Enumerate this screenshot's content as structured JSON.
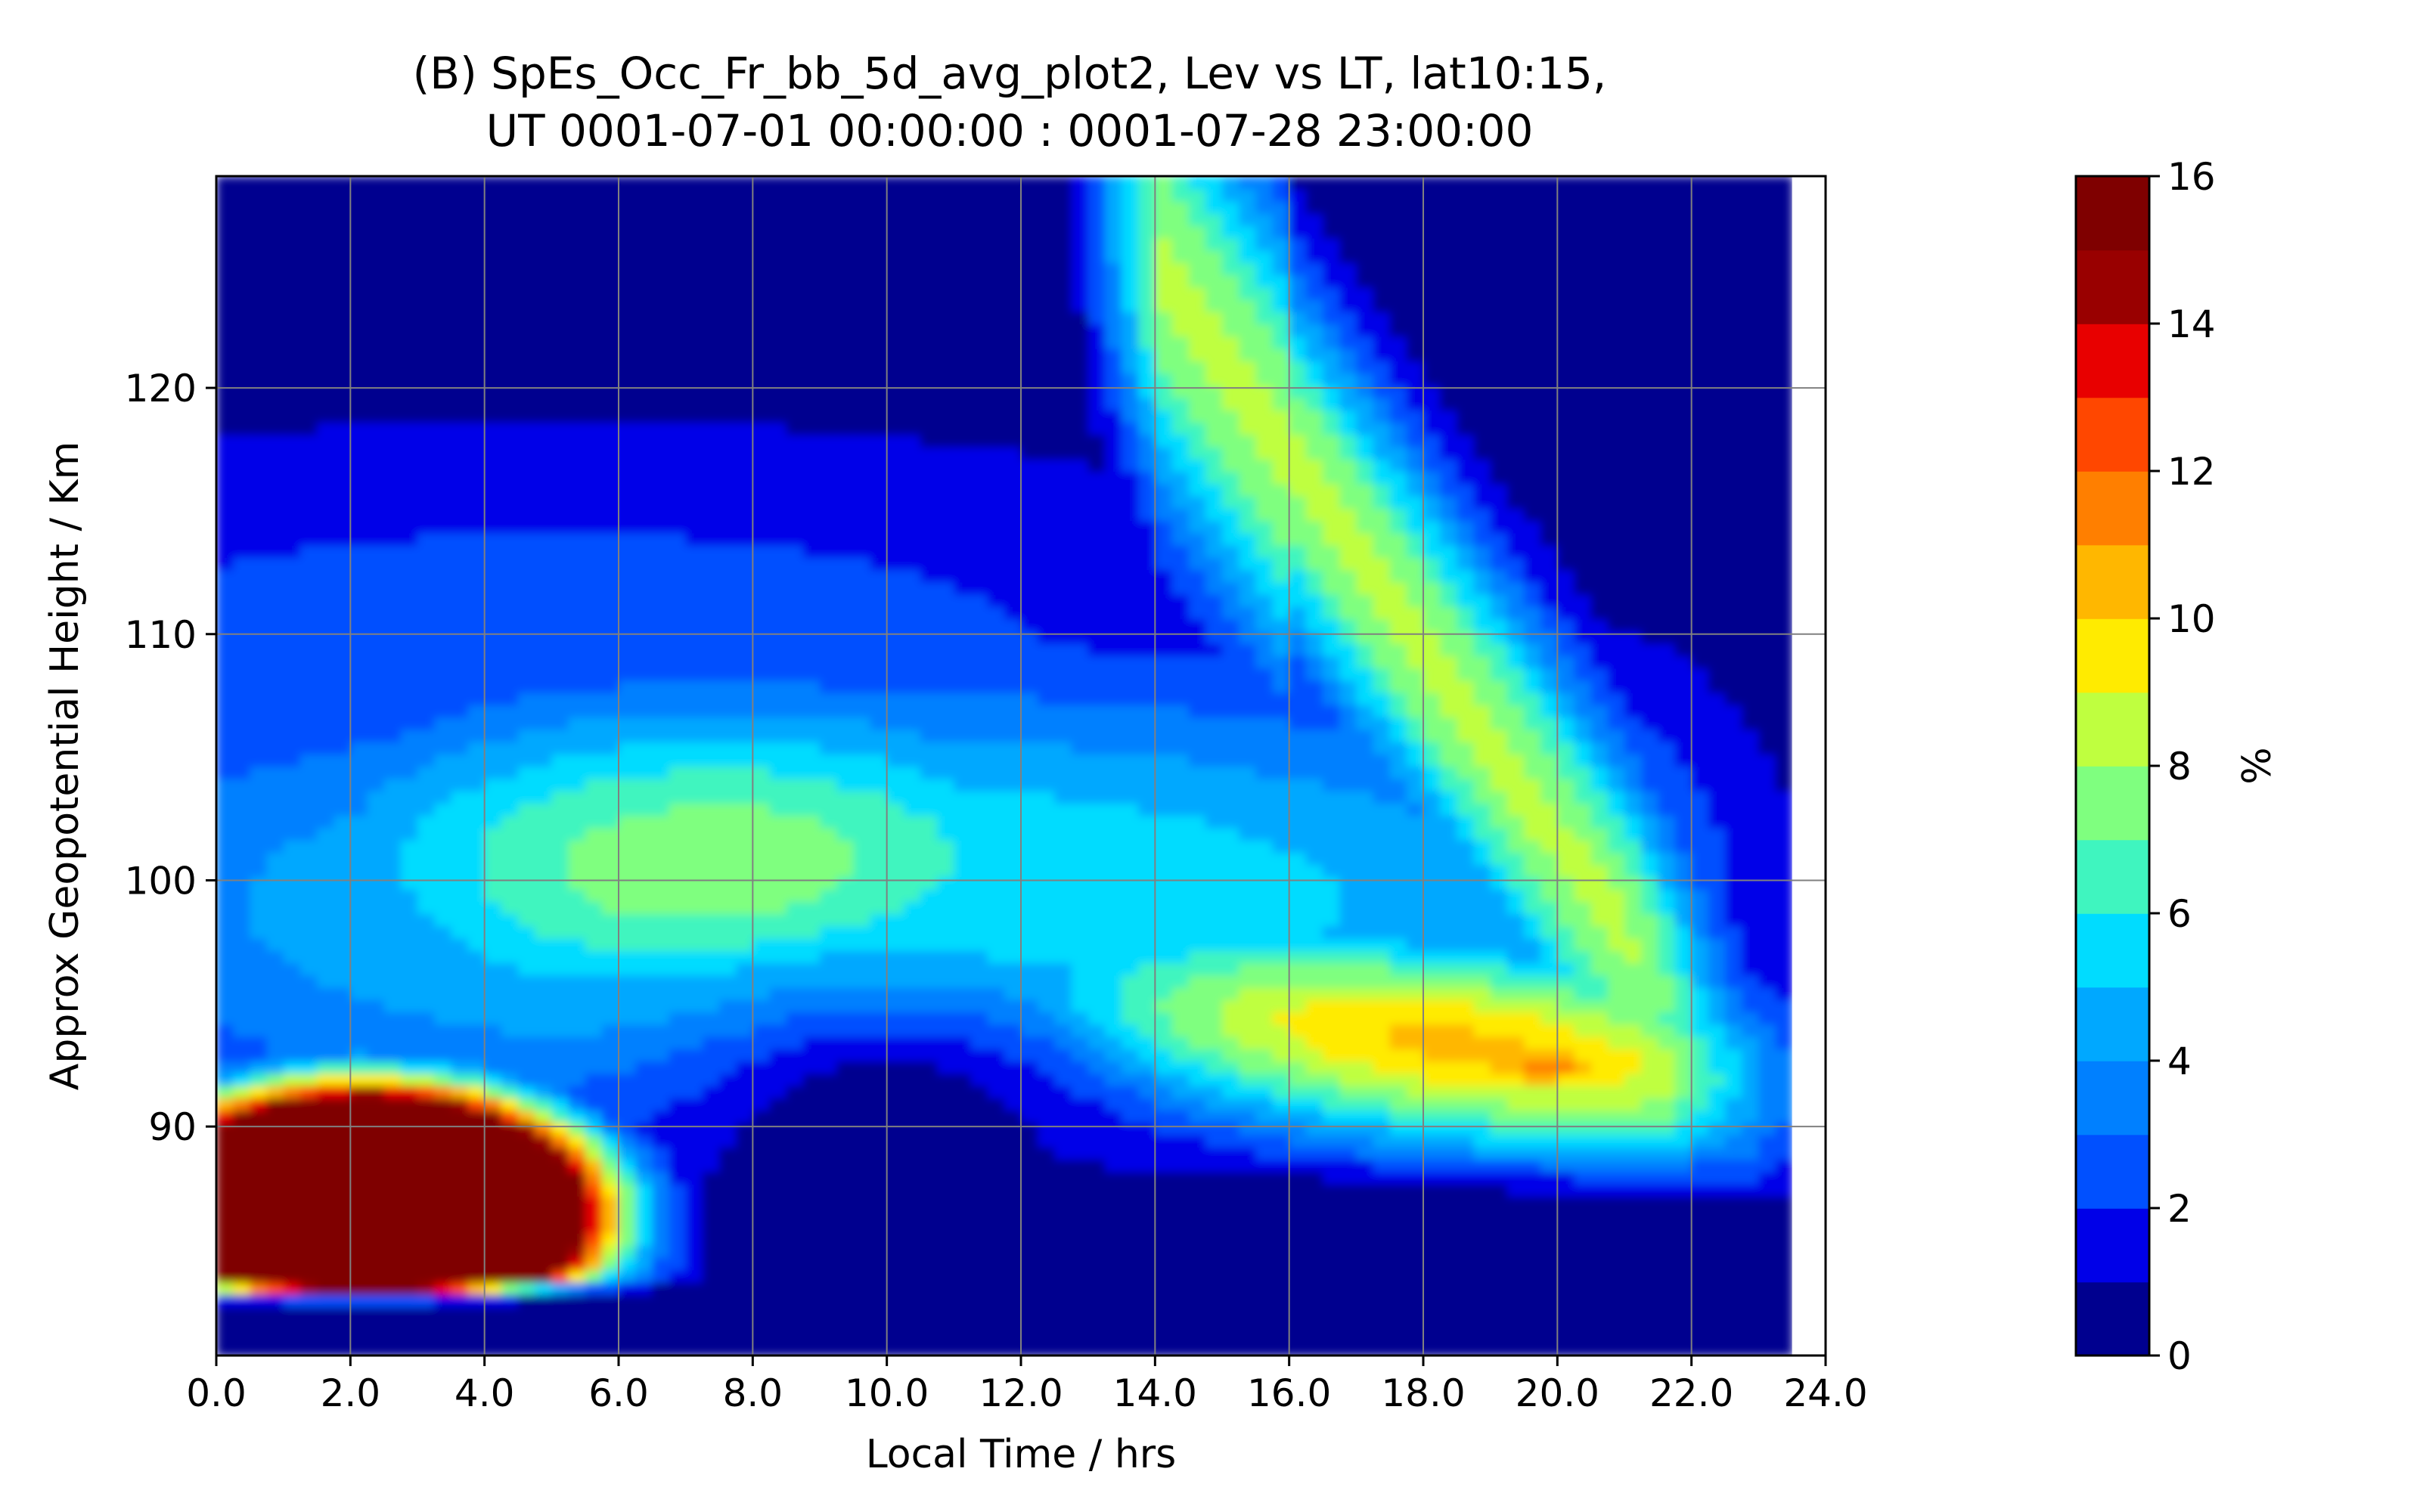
{
  "chart_data": {
    "type": "heatmap",
    "title_line1": "(B) SpEs_Occ_Fr_bb_5d_avg_plot2, Lev vs LT, lat10:15,",
    "title_line2": "UT 0001-07-01 00:00:00 : 0001-07-28 23:00:00",
    "xlabel": "Local Time / hrs",
    "ylabel": "Approx Geopotential Height / Km",
    "xlim": [
      0,
      24
    ],
    "ylim": [
      80.7,
      128.6
    ],
    "x_ticks": [
      0,
      2,
      4,
      6,
      8,
      10,
      12,
      14,
      16,
      18,
      20,
      22,
      24
    ],
    "x_tick_labels": [
      "0.0",
      "2.0",
      "4.0",
      "6.0",
      "8.0",
      "10.0",
      "12.0",
      "14.0",
      "16.0",
      "18.0",
      "20.0",
      "22.0",
      "24.0"
    ],
    "y_ticks": [
      90,
      100,
      110,
      120
    ],
    "y_tick_labels": [
      "90",
      "100",
      "110",
      "120"
    ],
    "data_x_max": 23.5,
    "grid": true,
    "colorbar": {
      "label": "%",
      "levels": [
        0,
        1,
        2,
        3,
        4,
        5,
        6,
        7,
        8,
        9,
        10,
        11,
        12,
        13,
        14,
        15,
        16
      ],
      "tick_values": [
        0,
        2,
        4,
        6,
        8,
        10,
        12,
        14,
        16
      ],
      "tick_labels": [
        "0",
        "2",
        "4",
        "6",
        "8",
        "10",
        "12",
        "14",
        "16"
      ],
      "colors": [
        "#00008f",
        "#0000e8",
        "#0050ff",
        "#0080ff",
        "#00a8ff",
        "#00dcff",
        "#3ff5bf",
        "#7fff7f",
        "#bfff3f",
        "#ffeb00",
        "#ffb700",
        "#ff7f00",
        "#ff4700",
        "#e80000",
        "#990000",
        "#7f0000"
      ]
    },
    "z_estimated_regions": [
      {
        "region": "high altitude band 110-128 km, 0-12 LT",
        "value_range": [
          0,
          2
        ]
      },
      {
        "region": "descending diurnal layer 126 km at 14 LT to 92 km at 22 LT",
        "value_range": [
          6,
          10
        ]
      },
      {
        "region": "layer near 100 km, 2-12 LT",
        "value_range": [
          7,
          9
        ]
      },
      {
        "region": "layer 92-95 km, 15-21 LT",
        "value_range": [
          9,
          12
        ]
      },
      {
        "region": "low altitude peak 84-90 km, 0-4 LT",
        "value_range": [
          13,
          16
        ]
      },
      {
        "region": "below 88 km, 8-22 LT",
        "value_range": [
          0,
          1
        ]
      }
    ]
  }
}
